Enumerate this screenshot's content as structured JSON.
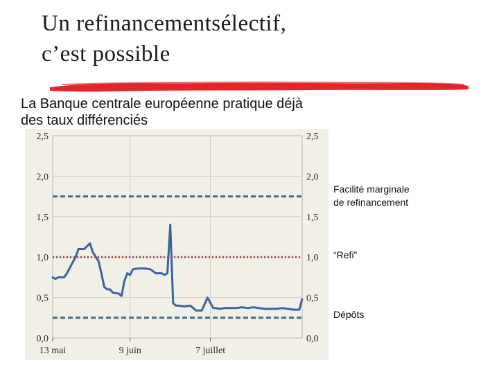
{
  "slide": {
    "title_line1": "Un refinancementsélectif,",
    "title_line2": "c’est possible",
    "subtitle_line1": "La Banque centrale européenne pratique déjà",
    "subtitle_line2": "des taux différenciés"
  },
  "colors": {
    "accent_red": "#e3262b",
    "rate_series": "#3a64a0",
    "facility_line": "#3f6c8e",
    "refi_line": "#9a4a4a",
    "deposit_line": "#3f6c8e",
    "chart_background": "#f2efe6",
    "grid": "#d2cec4"
  },
  "chart_data": {
    "type": "line",
    "title": "",
    "xlabel": "",
    "ylabel": "",
    "ylim": [
      0,
      2.5
    ],
    "y_ticks": [
      "0,0",
      "0,5",
      "1,0",
      "1,5",
      "2,0",
      "2,5"
    ],
    "x_ticks": [
      "13 mai",
      "9 juin",
      "7 juillet"
    ],
    "x_tick_days": [
      0,
      27,
      55
    ],
    "x_range_days": [
      0,
      87
    ],
    "grid": true,
    "legend": "right",
    "series": [
      {
        "name": "",
        "style": "solid",
        "x_days": [
          0,
          1,
          2,
          4,
          5,
          6,
          8,
          9,
          10,
          11,
          13,
          14,
          16,
          17,
          18,
          19,
          20,
          21,
          23,
          24,
          25,
          26,
          27,
          28,
          30,
          32,
          34,
          36,
          38,
          39,
          40,
          41,
          42,
          43,
          44,
          46,
          48,
          50,
          51,
          52,
          54,
          56,
          57,
          58,
          60,
          62,
          64,
          66,
          68,
          70,
          72,
          74,
          76,
          78,
          80,
          82,
          84,
          85,
          86,
          87
        ],
        "values": [
          0.75,
          0.73,
          0.75,
          0.75,
          0.8,
          0.87,
          1.0,
          1.1,
          1.1,
          1.1,
          1.17,
          1.06,
          0.95,
          0.8,
          0.63,
          0.6,
          0.6,
          0.56,
          0.55,
          0.52,
          0.7,
          0.8,
          0.78,
          0.85,
          0.86,
          0.86,
          0.85,
          0.8,
          0.8,
          0.78,
          0.8,
          1.4,
          0.43,
          0.4,
          0.4,
          0.39,
          0.4,
          0.34,
          0.34,
          0.34,
          0.5,
          0.37,
          0.37,
          0.36,
          0.37,
          0.37,
          0.37,
          0.38,
          0.37,
          0.38,
          0.37,
          0.36,
          0.36,
          0.36,
          0.37,
          0.36,
          0.35,
          0.35,
          0.35,
          0.48
        ]
      }
    ],
    "reference_lines": [
      {
        "name": "Facilité marginale de refinancement",
        "value": 1.75,
        "style": "dashed"
      },
      {
        "name": "“Refi”",
        "value": 1.0,
        "style": "dotted"
      },
      {
        "name": "Dépôts",
        "value": 0.25,
        "style": "dashed"
      }
    ]
  },
  "legend": {
    "facility_line1": "Facilité marginale",
    "facility_line2": "de refinancement",
    "refi": "“Refi”",
    "deposits": "Dépôts"
  }
}
